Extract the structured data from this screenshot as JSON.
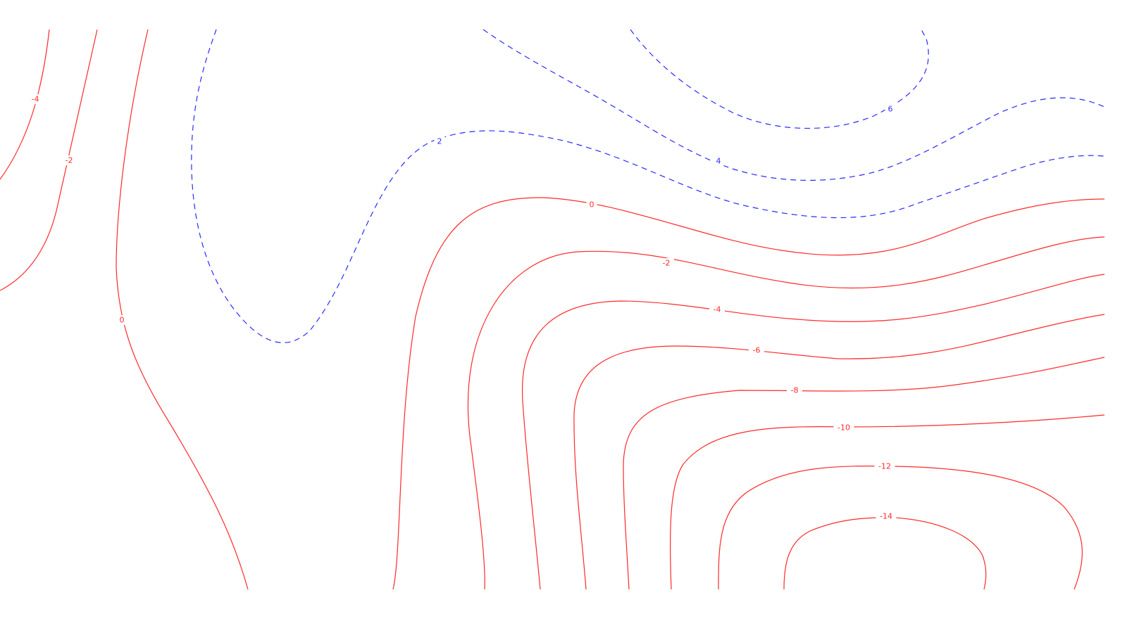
{
  "chart_data": {
    "type": "contour",
    "title": "",
    "xlabel": "",
    "ylabel": "",
    "grid": false,
    "legend": "none",
    "colors": {
      "negative": "#ff2a2a",
      "positive": "#2a2aff"
    },
    "line_styles": {
      "negative": "solid",
      "positive": "dashed"
    },
    "levels": [
      {
        "value": "-4",
        "sign": "neg"
      },
      {
        "value": "-2",
        "sign": "neg"
      },
      {
        "value": "0",
        "sign": "neg"
      },
      {
        "value": "0",
        "sign": "neg"
      },
      {
        "value": "-2",
        "sign": "neg"
      },
      {
        "value": "-4",
        "sign": "neg"
      },
      {
        "value": "-6",
        "sign": "neg"
      },
      {
        "value": "-8",
        "sign": "neg"
      },
      {
        "value": "-10",
        "sign": "neg"
      },
      {
        "value": "-12",
        "sign": "neg"
      },
      {
        "value": "-14",
        "sign": "neg"
      },
      {
        "value": "2",
        "sign": "pos"
      },
      {
        "value": "4",
        "sign": "pos"
      },
      {
        "value": "6",
        "sign": "pos"
      }
    ]
  }
}
